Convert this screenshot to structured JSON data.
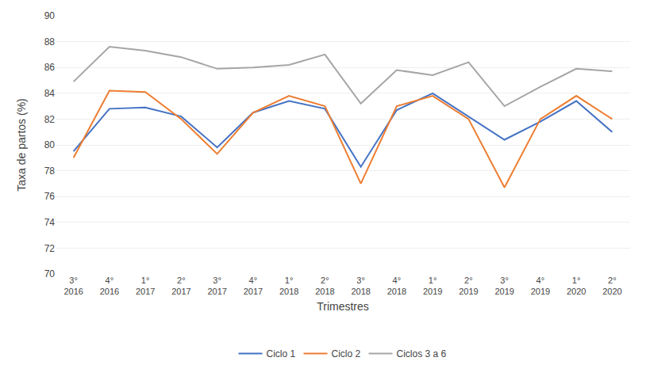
{
  "chart_data": {
    "type": "line",
    "xlabel": "Trimestres",
    "ylabel": "Taxa de partos (%)",
    "categories": [
      "3°\n2016",
      "4°\n2016",
      "1°\n2017",
      "2°\n2017",
      "3°\n2017",
      "4°\n2017",
      "1°\n2018",
      "2°\n2018",
      "3°\n2018",
      "4°\n2018",
      "1°\n2019",
      "2°\n2019",
      "3°\n2019",
      "4°\n2019",
      "1°\n2020",
      "2°\n2020"
    ],
    "series": [
      {
        "name": "Ciclo 1",
        "color": "#4472C4",
        "values": [
          79.5,
          82.8,
          82.9,
          82.2,
          79.8,
          82.5,
          83.4,
          82.8,
          78.3,
          82.7,
          84.0,
          82.2,
          80.4,
          81.8,
          83.4,
          81.0
        ]
      },
      {
        "name": "Ciclo 2",
        "color": "#ED7D31",
        "values": [
          79.0,
          84.2,
          84.1,
          82.0,
          79.3,
          82.5,
          83.8,
          83.0,
          77.0,
          83.0,
          83.8,
          82.0,
          76.7,
          82.0,
          83.8,
          82.0
        ]
      },
      {
        "name": "Ciclos 3 a 6",
        "color": "#A5A5A5",
        "values": [
          84.9,
          87.6,
          87.3,
          86.8,
          85.9,
          86.0,
          86.2,
          87.0,
          83.2,
          85.8,
          85.4,
          86.4,
          83.0,
          84.5,
          85.9,
          85.7
        ]
      }
    ],
    "ylim": [
      70,
      90
    ],
    "yticks": [
      70,
      72,
      74,
      76,
      78,
      80,
      82,
      84,
      86,
      88,
      90
    ],
    "grid": "y",
    "legend": "bottom"
  }
}
